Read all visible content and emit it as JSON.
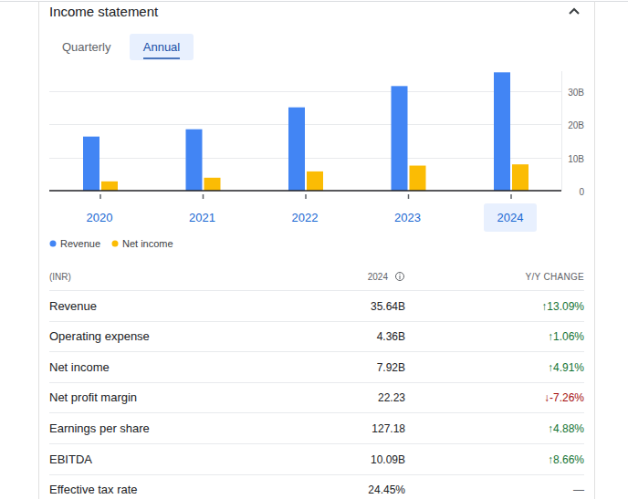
{
  "header": {
    "title": "Income statement",
    "tabs": [
      "Quarterly",
      "Annual"
    ]
  },
  "chart_data": {
    "type": "bar",
    "categories": [
      "2020",
      "2021",
      "2022",
      "2023",
      "2024"
    ],
    "series": [
      {
        "name": "Revenue",
        "color": "#4285f4",
        "values": [
          16.3,
          18.5,
          25.1,
          31.51,
          35.64
        ]
      },
      {
        "name": "Net income",
        "color": "#fbbc04",
        "values": [
          2.8,
          3.9,
          5.8,
          7.55,
          7.92
        ]
      }
    ],
    "ylim": [
      0,
      36
    ],
    "yticks": [
      0,
      {
        "value": 10,
        "label": "10B"
      },
      {
        "value": 20,
        "label": "20B"
      },
      {
        "value": 30,
        "label": "30B"
      }
    ],
    "grid": true,
    "legend": "bottom"
  },
  "table": {
    "unit": "(INR)",
    "period": "2024",
    "change_header": "Y/Y CHANGE",
    "rows": [
      [
        "Revenue",
        "35.64B",
        "↑13.09%"
      ],
      [
        "Operating expense",
        "4.36B",
        "↑1.06%"
      ],
      [
        "Net income",
        "7.92B",
        "↑4.91%"
      ],
      [
        "Net profit margin",
        "22.23",
        "↓-7.26%"
      ],
      [
        "Earnings per share",
        "127.18",
        "↑4.88%"
      ],
      [
        "EBITDA",
        "10.09B",
        "↑8.66%"
      ],
      [
        "Effective tax rate",
        "24.45%",
        "—"
      ]
    ]
  }
}
